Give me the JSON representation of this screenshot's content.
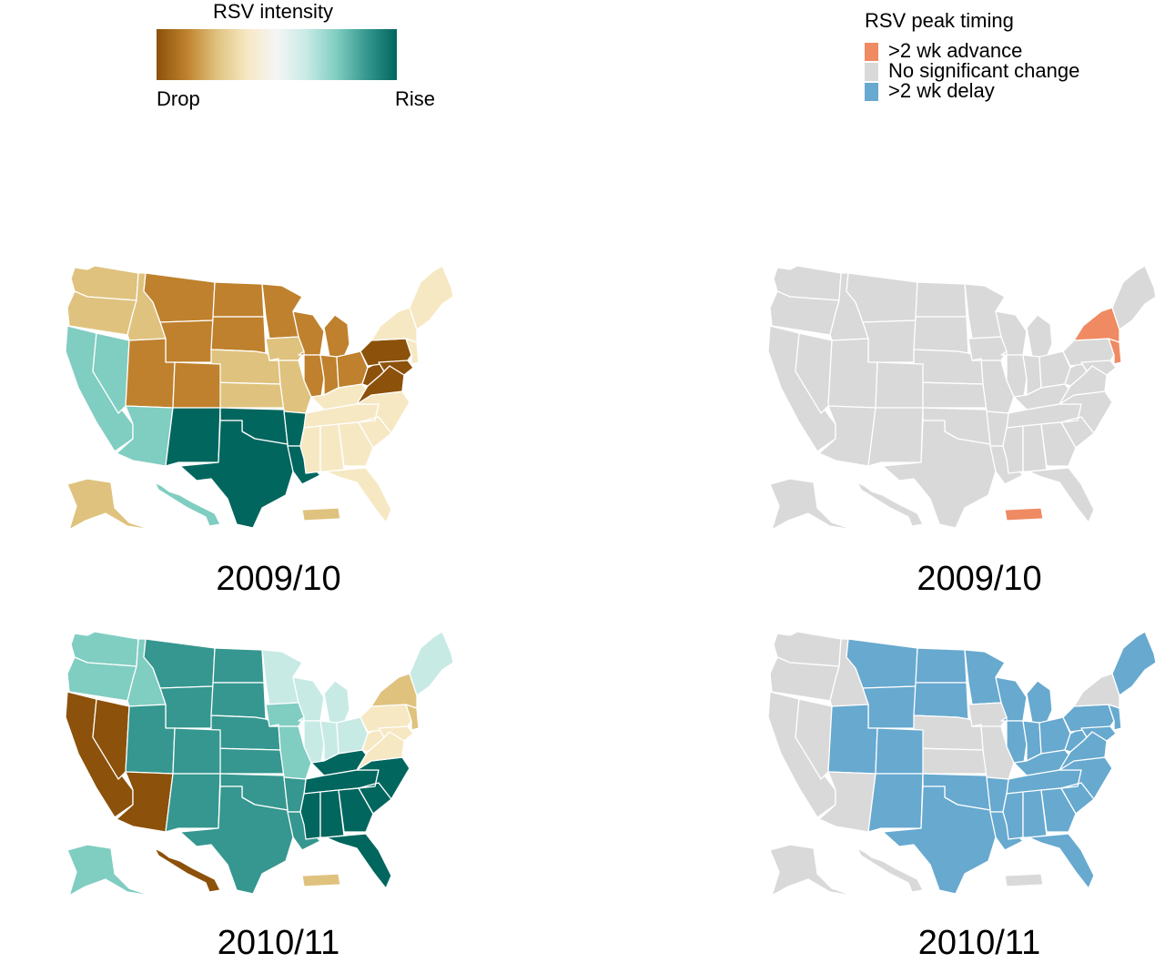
{
  "intensity_legend": {
    "title": "RSV intensity",
    "low_label": "Drop",
    "high_label": "Rise",
    "gradient_colors": [
      "#8c510a",
      "#bf812d",
      "#dfc27d",
      "#f6e8c3",
      "#f5f5f5",
      "#c7eae5",
      "#80cdc1",
      "#35978f",
      "#01665e"
    ]
  },
  "timing_legend": {
    "title": "RSV peak timing",
    "items": [
      {
        "label": ">2 wk advance",
        "color": "#ef8a62"
      },
      {
        "label": "No significant change",
        "color": "#d9d9d9"
      },
      {
        "label": ">2 wk delay",
        "color": "#67a9cf"
      }
    ]
  },
  "panels": [
    {
      "season": "2009/10",
      "metric": "intensity",
      "regions": {
        "WA": "#dfc27d",
        "OR": "#dfc27d",
        "ID": "#dfc27d",
        "MT": "#bf812d",
        "WY": "#bf812d",
        "ND": "#bf812d",
        "SD": "#bf812d",
        "MN": "#bf812d",
        "WI": "#bf812d",
        "MI": "#bf812d",
        "CA": "#80cdc1",
        "NV": "#80cdc1",
        "AZ": "#80cdc1",
        "UT": "#bf812d",
        "CO": "#bf812d",
        "NE": "#dfc27d",
        "KS": "#dfc27d",
        "IA": "#dfc27d",
        "MO": "#dfc27d",
        "IL": "#bf812d",
        "IN": "#bf812d",
        "OH": "#bf812d",
        "NM": "#01665e",
        "TX": "#01665e",
        "OK": "#01665e",
        "AR": "#01665e",
        "LA": "#01665e",
        "MS": "#f6e8c3",
        "AL": "#f6e8c3",
        "GA": "#f6e8c3",
        "FL": "#f6e8c3",
        "SC": "#f6e8c3",
        "NC": "#f6e8c3",
        "TN": "#f6e8c3",
        "KY": "#f6e8c3",
        "PA": "#8c510a",
        "WV": "#8c510a",
        "VA": "#8c510a",
        "MD": "#8c510a",
        "NY": "#f6e8c3",
        "NJ": "#f6e8c3",
        "NE_STATES": "#f6e8c3",
        "AK": "#dfc27d",
        "HI": "#80cdc1",
        "PR": "#dfc27d"
      }
    },
    {
      "season": "2009/10",
      "metric": "timing",
      "regions": {
        "WA": "#d9d9d9",
        "OR": "#d9d9d9",
        "ID": "#d9d9d9",
        "MT": "#d9d9d9",
        "WY": "#d9d9d9",
        "ND": "#d9d9d9",
        "SD": "#d9d9d9",
        "MN": "#d9d9d9",
        "WI": "#d9d9d9",
        "MI": "#d9d9d9",
        "CA": "#d9d9d9",
        "NV": "#d9d9d9",
        "AZ": "#d9d9d9",
        "UT": "#d9d9d9",
        "CO": "#d9d9d9",
        "NE": "#d9d9d9",
        "KS": "#d9d9d9",
        "IA": "#d9d9d9",
        "MO": "#d9d9d9",
        "IL": "#d9d9d9",
        "IN": "#d9d9d9",
        "OH": "#d9d9d9",
        "NM": "#d9d9d9",
        "TX": "#d9d9d9",
        "OK": "#d9d9d9",
        "AR": "#d9d9d9",
        "LA": "#d9d9d9",
        "MS": "#d9d9d9",
        "AL": "#d9d9d9",
        "GA": "#d9d9d9",
        "FL": "#d9d9d9",
        "SC": "#d9d9d9",
        "NC": "#d9d9d9",
        "TN": "#d9d9d9",
        "KY": "#d9d9d9",
        "PA": "#d9d9d9",
        "WV": "#d9d9d9",
        "VA": "#d9d9d9",
        "MD": "#d9d9d9",
        "NY": "#ef8a62",
        "NJ": "#ef8a62",
        "NE_STATES": "#d9d9d9",
        "AK": "#d9d9d9",
        "HI": "#d9d9d9",
        "PR": "#ef8a62"
      }
    },
    {
      "season": "2010/11",
      "metric": "intensity",
      "regions": {
        "WA": "#80cdc1",
        "OR": "#80cdc1",
        "ID": "#80cdc1",
        "MT": "#35978f",
        "WY": "#35978f",
        "ND": "#35978f",
        "SD": "#35978f",
        "MN": "#c7eae5",
        "WI": "#c7eae5",
        "MI": "#c7eae5",
        "CA": "#8c510a",
        "NV": "#8c510a",
        "AZ": "#8c510a",
        "UT": "#35978f",
        "CO": "#35978f",
        "NE": "#35978f",
        "KS": "#35978f",
        "IA": "#80cdc1",
        "MO": "#80cdc1",
        "IL": "#c7eae5",
        "IN": "#c7eae5",
        "OH": "#c7eae5",
        "NM": "#35978f",
        "TX": "#35978f",
        "OK": "#35978f",
        "AR": "#35978f",
        "LA": "#35978f",
        "MS": "#01665e",
        "AL": "#01665e",
        "GA": "#01665e",
        "FL": "#01665e",
        "SC": "#01665e",
        "NC": "#01665e",
        "TN": "#01665e",
        "KY": "#01665e",
        "PA": "#f6e8c3",
        "WV": "#f6e8c3",
        "VA": "#f6e8c3",
        "MD": "#f6e8c3",
        "NY": "#dfc27d",
        "NJ": "#dfc27d",
        "NE_STATES": "#c7eae5",
        "AK": "#80cdc1",
        "HI": "#8c510a",
        "PR": "#dfc27d"
      }
    },
    {
      "season": "2010/11",
      "metric": "timing",
      "regions": {
        "WA": "#d9d9d9",
        "OR": "#d9d9d9",
        "ID": "#d9d9d9",
        "MT": "#67a9cf",
        "WY": "#67a9cf",
        "ND": "#67a9cf",
        "SD": "#67a9cf",
        "MN": "#67a9cf",
        "WI": "#67a9cf",
        "MI": "#67a9cf",
        "CA": "#d9d9d9",
        "NV": "#d9d9d9",
        "AZ": "#d9d9d9",
        "UT": "#67a9cf",
        "CO": "#67a9cf",
        "NE": "#d9d9d9",
        "KS": "#d9d9d9",
        "IA": "#d9d9d9",
        "MO": "#d9d9d9",
        "IL": "#67a9cf",
        "IN": "#67a9cf",
        "OH": "#67a9cf",
        "NM": "#67a9cf",
        "TX": "#67a9cf",
        "OK": "#67a9cf",
        "AR": "#67a9cf",
        "LA": "#67a9cf",
        "MS": "#67a9cf",
        "AL": "#67a9cf",
        "GA": "#67a9cf",
        "FL": "#67a9cf",
        "SC": "#67a9cf",
        "NC": "#67a9cf",
        "TN": "#67a9cf",
        "KY": "#67a9cf",
        "PA": "#67a9cf",
        "WV": "#67a9cf",
        "VA": "#67a9cf",
        "MD": "#67a9cf",
        "NY": "#d9d9d9",
        "NJ": "#67a9cf",
        "NE_STATES": "#67a9cf",
        "AK": "#d9d9d9",
        "HI": "#d9d9d9",
        "PR": "#d9d9d9"
      }
    }
  ]
}
